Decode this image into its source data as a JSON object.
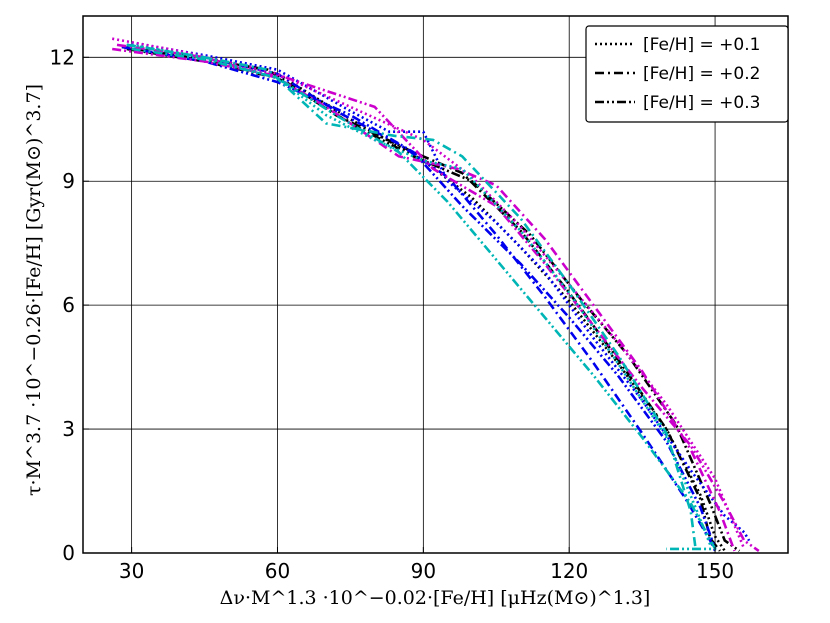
{
  "chart_data": {
    "type": "line",
    "title": "",
    "xlabel": "Δν·M^1.3 ·10^−0.02·[Fe/H] [μHz(M⊙)^1.3]",
    "ylabel": "τ·M^3.7 ·10^−0.26·[Fe/H] [Gyr(M⊙)^3.7]",
    "xlim": [
      20,
      165
    ],
    "ylim": [
      0,
      13
    ],
    "xticks": [
      "30",
      "60",
      "90",
      "120",
      "150"
    ],
    "yticks": [
      "0",
      "3",
      "6",
      "9",
      "12"
    ],
    "grid": true,
    "legend_position": "top-right",
    "legend": [
      {
        "label": "[Fe/H] = +0.1",
        "dash": "dotted"
      },
      {
        "label": "[Fe/H] = +0.2",
        "dash": "dash-dot"
      },
      {
        "label": "[Fe/H] = +0.3",
        "dash": "dash-dot-dot"
      }
    ],
    "series": [
      {
        "color": "#000000",
        "dash": "dotted",
        "x": [
          29,
          45,
          60,
          75,
          90,
          100,
          110,
          120,
          130,
          140,
          147,
          150,
          152
        ],
        "y": [
          12.3,
          12.0,
          11.6,
          10.5,
          9.5,
          8.6,
          7.4,
          6.1,
          4.6,
          3.0,
          1.4,
          0.4,
          0.05
        ]
      },
      {
        "color": "#000000",
        "dash": "dash-dot",
        "x": [
          28,
          45,
          58,
          72,
          88,
          98,
          110,
          120,
          130,
          140,
          147,
          149,
          151
        ],
        "y": [
          12.25,
          11.95,
          11.7,
          10.6,
          9.7,
          9.2,
          7.8,
          6.3,
          4.7,
          3.0,
          1.3,
          0.35,
          0.05
        ]
      },
      {
        "color": "#000000",
        "dash": "dash-dot-dot",
        "x": [
          29,
          45,
          60,
          75,
          88,
          100,
          112,
          122,
          132,
          142,
          149,
          152,
          155
        ],
        "y": [
          12.2,
          11.9,
          11.5,
          10.4,
          9.6,
          9.0,
          7.7,
          6.2,
          4.8,
          3.1,
          1.2,
          0.3,
          0.05
        ]
      },
      {
        "color": "#0000ee",
        "dash": "dotted",
        "x": [
          30,
          45,
          60,
          75,
          83,
          85,
          90,
          95,
          105,
          115,
          125,
          135,
          145,
          152,
          156,
          157
        ],
        "y": [
          12.35,
          12.05,
          11.7,
          10.7,
          10.2,
          10.2,
          10.2,
          9.0,
          8.0,
          6.8,
          5.2,
          3.7,
          2.0,
          0.9,
          0.5,
          0.3
        ]
      },
      {
        "color": "#0000ee",
        "dash": "dash-dot",
        "x": [
          29,
          45,
          60,
          72,
          85,
          95,
          105,
          115,
          125,
          135,
          144,
          149,
          150
        ],
        "y": [
          12.3,
          12.0,
          11.6,
          10.7,
          9.9,
          9.1,
          7.7,
          6.2,
          4.6,
          2.9,
          1.3,
          0.3,
          0.05
        ]
      },
      {
        "color": "#0000ee",
        "dash": "dash-dot-dot",
        "x": [
          28,
          45,
          60,
          75,
          88,
          98,
          110,
          120,
          130,
          140,
          147,
          150
        ],
        "y": [
          12.25,
          11.9,
          11.4,
          10.6,
          9.7,
          8.4,
          7.0,
          5.7,
          4.3,
          2.7,
          1.1,
          0.1
        ]
      },
      {
        "color": "#cc00cc",
        "dash": "dotted",
        "x": [
          26,
          40,
          60,
          75,
          90,
          100,
          110,
          120,
          130,
          140,
          150,
          156
        ],
        "y": [
          12.45,
          12.15,
          11.6,
          10.8,
          10.0,
          9.1,
          7.9,
          6.5,
          5.1,
          3.6,
          1.8,
          0.1
        ]
      },
      {
        "color": "#cc00cc",
        "dash": "dash-dot",
        "x": [
          27,
          45,
          60,
          70,
          85,
          97,
          105,
          115,
          125,
          135,
          145,
          151,
          154
        ],
        "y": [
          12.3,
          12.0,
          11.5,
          10.8,
          9.6,
          9.3,
          8.9,
          7.6,
          6.0,
          4.4,
          2.5,
          1.0,
          0.05
        ]
      },
      {
        "color": "#cc00cc",
        "dash": "dash-dot-dot",
        "x": [
          26,
          45,
          62,
          80,
          92,
          105,
          115,
          125,
          135,
          145,
          152,
          156,
          159
        ],
        "y": [
          12.2,
          11.9,
          11.5,
          10.8,
          9.3,
          8.4,
          7.0,
          5.5,
          4.0,
          2.6,
          1.2,
          0.3,
          0.05
        ]
      },
      {
        "color": "#00b5b5",
        "dash": "dotted",
        "x": [
          30,
          45,
          60,
          70,
          80,
          90,
          98,
          110,
          120,
          130,
          140,
          146,
          149
        ],
        "y": [
          12.3,
          12.0,
          11.5,
          10.6,
          10.0,
          9.5,
          9.3,
          7.8,
          6.3,
          4.6,
          2.8,
          1.1,
          0.2
        ]
      },
      {
        "color": "#00b5b5",
        "dash": "dash-dot",
        "x": [
          29,
          45,
          58,
          70,
          84,
          92,
          98,
          110,
          120,
          130,
          140,
          145,
          146
        ],
        "y": [
          12.3,
          12.0,
          11.7,
          10.4,
          10.1,
          10.0,
          9.6,
          8.1,
          6.5,
          4.8,
          2.9,
          1.0,
          0.1
        ]
      },
      {
        "color": "#00b5b5",
        "dash": "dash-dot-dot",
        "x": [
          30,
          45,
          60,
          72,
          85,
          95,
          105,
          115,
          125,
          135,
          145,
          150,
          140
        ],
        "y": [
          12.2,
          11.95,
          11.5,
          10.6,
          9.7,
          8.5,
          7.1,
          5.7,
          4.3,
          2.8,
          1.2,
          0.1,
          0.1
        ]
      }
    ]
  }
}
